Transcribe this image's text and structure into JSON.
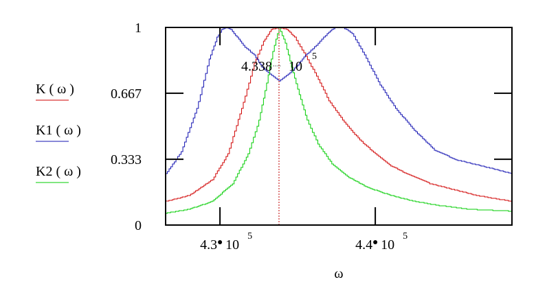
{
  "chart_data": {
    "type": "line",
    "xlabel": "ω",
    "ylabel": "",
    "xlim": [
      426500,
      448800
    ],
    "ylim": [
      0,
      1
    ],
    "y_ticks": [
      {
        "value": 0,
        "label": "0"
      },
      {
        "value": 0.333,
        "label": "0.333"
      },
      {
        "value": 0.667,
        "label": "0.667"
      },
      {
        "value": 1,
        "label": "1"
      }
    ],
    "x_ticks": [
      {
        "value": 430000,
        "mantissa": "4.3",
        "base": "10",
        "exp": "5"
      },
      {
        "value": 440000,
        "mantissa": "4.4",
        "base": "10",
        "exp": "5"
      }
    ],
    "marker": {
      "x": 433800,
      "mantissa": "4.338",
      "base": "10",
      "exp": "5"
    },
    "series": [
      {
        "name": "K ( ω )",
        "color": "#d00000",
        "x": [
          426500,
          428000,
          429500,
          430500,
          431500,
          432200,
          432800,
          433300,
          433800,
          434300,
          434800,
          435400,
          436100,
          437000,
          438000,
          439000,
          440000,
          441000,
          442000,
          443500,
          445000,
          446500,
          448000,
          448800
        ],
        "y": [
          0.12,
          0.15,
          0.23,
          0.36,
          0.62,
          0.82,
          0.93,
          0.99,
          1.0,
          0.99,
          0.95,
          0.87,
          0.77,
          0.63,
          0.52,
          0.43,
          0.36,
          0.3,
          0.26,
          0.21,
          0.18,
          0.15,
          0.13,
          0.12
        ]
      },
      {
        "name": "K1 ( ω )",
        "color": "#1010b0",
        "x": [
          426500,
          427500,
          428500,
          429300,
          429800,
          430100,
          430400,
          430700,
          431100,
          431600,
          432200,
          432700,
          433100,
          433800,
          434500,
          435000,
          435500,
          436200,
          436900,
          437400,
          437900,
          438500,
          439300,
          440300,
          441300,
          442500,
          443800,
          445200,
          446800,
          448800
        ],
        "y": [
          0.26,
          0.37,
          0.59,
          0.84,
          0.95,
          0.99,
          1.0,
          0.99,
          0.95,
          0.9,
          0.86,
          0.8,
          0.77,
          0.73,
          0.77,
          0.81,
          0.86,
          0.91,
          0.97,
          1.0,
          1.0,
          0.97,
          0.86,
          0.71,
          0.59,
          0.48,
          0.38,
          0.33,
          0.3,
          0.26
        ]
      },
      {
        "name": "K2 ( ω )",
        "color": "#00cc00",
        "x": [
          426500,
          428000,
          429500,
          430800,
          431800,
          432500,
          433000,
          433400,
          433800,
          434200,
          434600,
          435100,
          435600,
          436300,
          437200,
          438300,
          439500,
          441000,
          442500,
          444000,
          446000,
          448800
        ],
        "y": [
          0.06,
          0.08,
          0.12,
          0.21,
          0.36,
          0.53,
          0.72,
          0.88,
          1.0,
          0.92,
          0.8,
          0.66,
          0.53,
          0.41,
          0.31,
          0.24,
          0.19,
          0.15,
          0.12,
          0.1,
          0.08,
          0.07
        ]
      }
    ]
  }
}
